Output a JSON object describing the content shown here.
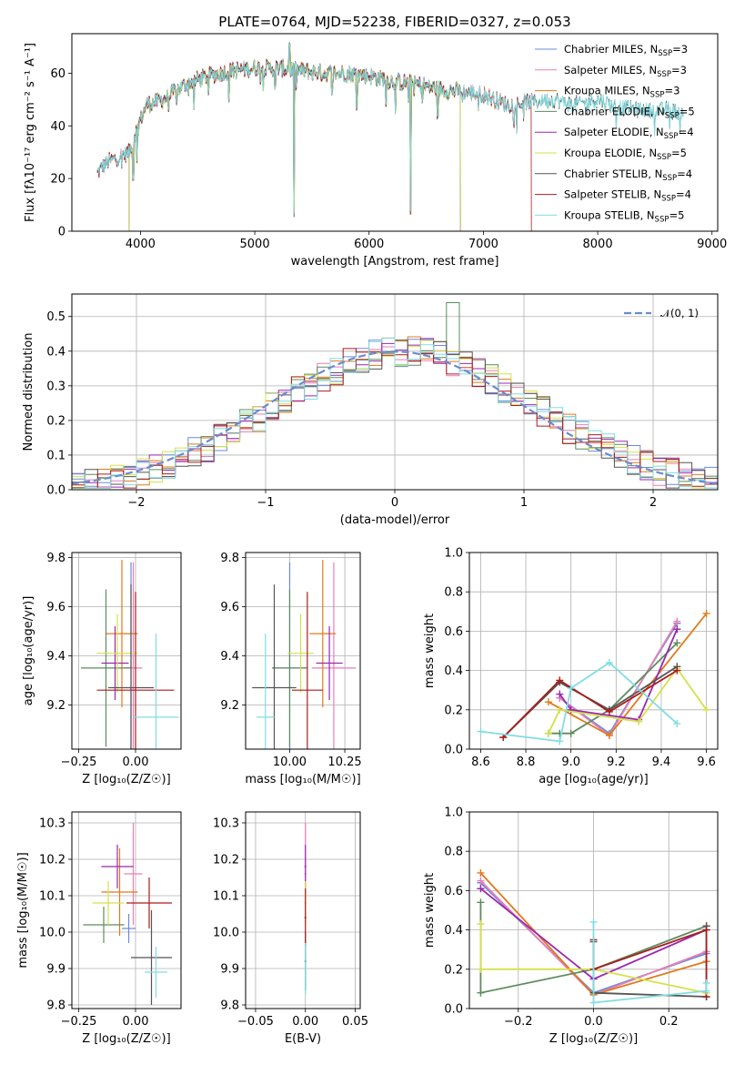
{
  "page": {
    "title": "PLATE=0764, MJD=52238, FIBERID=0327, z=0.053"
  },
  "colors": {
    "chabrier_miles": "#6b8bd8",
    "salpeter_miles": "#e77fb6",
    "kroupa_miles": "#e07a1c",
    "chabrier_elodie": "#5c8c5c",
    "salpeter_elodie": "#9b27b0",
    "kroupa_elodie": "#d5e04a",
    "chabrier_stelib": "#555555",
    "salpeter_stelib": "#aa1c1c",
    "kroupa_stelib": "#80dde2",
    "gaussian": "#6a8bcf",
    "grid": "#b0b0b0"
  },
  "chart_data": [
    {
      "id": "spectrum",
      "type": "line",
      "xlabel": "wavelength [Angstrom, rest frame]",
      "ylabel": "Flux [fλ10⁻¹⁷ erg cm⁻² s⁻¹ A⁻¹]",
      "xlim": [
        3400,
        9050
      ],
      "ylim": [
        0,
        75
      ],
      "xticks": [
        4000,
        5000,
        6000,
        7000,
        8000,
        9000
      ],
      "yticks": [
        0,
        20,
        40,
        60
      ],
      "grid": false,
      "legend_position": "top-right",
      "series": [
        {
          "name": "Chabrier MILES, N_SSP=3",
          "color_key": "chabrier_miles",
          "range": [
            3620,
            7420
          ]
        },
        {
          "name": "Salpeter MILES, N_SSP=3",
          "color_key": "salpeter_miles",
          "range": [
            3620,
            7420
          ]
        },
        {
          "name": "Kroupa MILES, N_SSP=3",
          "color_key": "kroupa_miles",
          "range": [
            3620,
            7420
          ]
        },
        {
          "name": "Chabrier ELODIE, N_SSP=5",
          "color_key": "chabrier_elodie",
          "range": [
            3900,
            6800
          ]
        },
        {
          "name": "Salpeter ELODIE, N_SSP=4",
          "color_key": "salpeter_elodie",
          "range": [
            3900,
            6800
          ]
        },
        {
          "name": "Kroupa ELODIE, N_SSP=5",
          "color_key": "kroupa_elodie",
          "range": [
            3900,
            6800
          ]
        },
        {
          "name": "Chabrier STELIB, N_SSP=4",
          "color_key": "chabrier_stelib",
          "range": [
            3620,
            8750
          ]
        },
        {
          "name": "Salpeter STELIB, N_SSP=4",
          "color_key": "salpeter_stelib",
          "range": [
            3620,
            7420
          ]
        },
        {
          "name": "Kroupa STELIB, N_SSP=5",
          "color_key": "kroupa_stelib",
          "range": [
            3620,
            8750
          ]
        }
      ],
      "continuum": [
        [
          3620,
          22
        ],
        [
          3700,
          26
        ],
        [
          3800,
          28
        ],
        [
          3900,
          30
        ],
        [
          3960,
          38
        ],
        [
          4050,
          48
        ],
        [
          4200,
          50
        ],
        [
          4400,
          56
        ],
        [
          4600,
          59
        ],
        [
          4800,
          61
        ],
        [
          5000,
          62
        ],
        [
          5200,
          62
        ],
        [
          5400,
          61
        ],
        [
          5600,
          60
        ],
        [
          5800,
          60
        ],
        [
          6000,
          59
        ],
        [
          6200,
          57
        ],
        [
          6400,
          56
        ],
        [
          6600,
          54
        ],
        [
          6800,
          53
        ],
        [
          7000,
          52
        ],
        [
          7200,
          48
        ],
        [
          7400,
          49
        ],
        [
          7600,
          50
        ],
        [
          7800,
          48
        ],
        [
          8000,
          50
        ],
        [
          8200,
          47
        ],
        [
          8400,
          46
        ],
        [
          8600,
          46
        ],
        [
          8750,
          45
        ]
      ]
    },
    {
      "id": "residuals",
      "type": "histogram",
      "xlabel": "(data-model)/error",
      "ylabel": "Normed distribution",
      "xlim": [
        -2.5,
        2.5
      ],
      "ylim": [
        0,
        0.565
      ],
      "xticks": [
        -2,
        -1,
        0,
        1,
        2
      ],
      "yticks": [
        0.0,
        0.1,
        0.2,
        0.3,
        0.4,
        0.5
      ],
      "grid": true,
      "legend_position": "top-right",
      "gaussian_label": "𝒩(0, 1)",
      "bin_width": 0.1
    },
    {
      "id": "age_vs_Z",
      "type": "scatter",
      "xlabel": "Z [log₁₀(Z/Z☉)]",
      "ylabel": "age  [log₁₀(age/yr)]",
      "xlim": [
        -0.28,
        0.2
      ],
      "ylim": [
        9.02,
        9.82
      ],
      "xticks": [
        -0.25,
        0.0,
        0.25
      ],
      "yticks": [
        9.2,
        9.4,
        9.6,
        9.8
      ],
      "grid": true,
      "points": [
        {
          "key": "chabrier_miles",
          "x": -0.02,
          "xerr": 0.03,
          "y": 9.35,
          "yerr": 0.43
        },
        {
          "key": "salpeter_miles",
          "x": -0.01,
          "xerr": 0.04,
          "y": 9.35,
          "yerr": 0.43
        },
        {
          "key": "kroupa_miles",
          "x": -0.06,
          "xerr": 0.07,
          "y": 9.49,
          "yerr": 0.3
        },
        {
          "key": "chabrier_elodie",
          "x": -0.13,
          "xerr": 0.11,
          "y": 9.35,
          "yerr": 0.32
        },
        {
          "key": "salpeter_elodie",
          "x": -0.09,
          "xerr": 0.06,
          "y": 9.37,
          "yerr": 0.15
        },
        {
          "key": "kroupa_elodie",
          "x": -0.08,
          "xerr": 0.09,
          "y": 9.41,
          "yerr": 0.16
        },
        {
          "key": "chabrier_stelib",
          "x": -0.02,
          "xerr": 0.1,
          "y": 9.27,
          "yerr": 0.42
        },
        {
          "key": "salpeter_stelib",
          "x": 0.0,
          "xerr": 0.17,
          "y": 9.26,
          "yerr": 0.4
        },
        {
          "key": "kroupa_stelib",
          "x": 0.09,
          "xerr": 0.1,
          "y": 9.15,
          "yerr": 0.34
        }
      ]
    },
    {
      "id": "age_vs_mass",
      "type": "scatter",
      "xlabel": "mass [log₁₀(M/M☉)]",
      "ylabel": "",
      "xlim": [
        9.8,
        10.32
      ],
      "ylim": [
        9.02,
        9.82
      ],
      "xticks": [
        10.0,
        10.25
      ],
      "yticks": [
        9.2,
        9.4,
        9.6,
        9.8
      ],
      "grid": true,
      "points": [
        {
          "key": "chabrier_miles",
          "x": 10.0,
          "xerr": 0.08,
          "y": 9.35,
          "yerr": 0.43
        },
        {
          "key": "salpeter_miles",
          "x": 10.2,
          "xerr": 0.1,
          "y": 9.35,
          "yerr": 0.43
        },
        {
          "key": "kroupa_miles",
          "x": 10.15,
          "xerr": 0.06,
          "y": 9.49,
          "yerr": 0.3
        },
        {
          "key": "chabrier_elodie",
          "x": 10.0,
          "xerr": 0.08,
          "y": 9.35,
          "yerr": 0.32
        },
        {
          "key": "salpeter_elodie",
          "x": 10.18,
          "xerr": 0.06,
          "y": 9.37,
          "yerr": 0.15
        },
        {
          "key": "kroupa_elodie",
          "x": 10.05,
          "xerr": 0.06,
          "y": 9.41,
          "yerr": 0.16
        },
        {
          "key": "chabrier_stelib",
          "x": 9.93,
          "xerr": 0.1,
          "y": 9.27,
          "yerr": 0.42
        },
        {
          "key": "salpeter_stelib",
          "x": 10.08,
          "xerr": 0.07,
          "y": 9.26,
          "yerr": 0.4
        },
        {
          "key": "kroupa_stelib",
          "x": 9.89,
          "xerr": 0.04,
          "y": 9.15,
          "yerr": 0.34
        }
      ]
    },
    {
      "id": "weight_vs_age",
      "type": "line",
      "xlabel": "age  [log₁₀(age/yr)]",
      "ylabel": "mass weight",
      "xlim": [
        8.55,
        9.65
      ],
      "ylim": [
        0,
        1
      ],
      "xticks": [
        8.6,
        8.8,
        9.0,
        9.2,
        9.4,
        9.6
      ],
      "yticks": [
        0.0,
        0.2,
        0.4,
        0.6,
        0.8,
        1.0
      ],
      "grid": true,
      "series": [
        {
          "key": "chabrier_miles",
          "x": [
            8.95,
            9.17,
            9.47
          ],
          "y": [
            0.26,
            0.08,
            0.64
          ]
        },
        {
          "key": "salpeter_miles",
          "x": [
            8.95,
            9.17,
            9.47
          ],
          "y": [
            0.26,
            0.07,
            0.65
          ]
        },
        {
          "key": "kroupa_miles",
          "x": [
            8.9,
            9.17,
            9.6
          ],
          "y": [
            0.24,
            0.07,
            0.69
          ]
        },
        {
          "key": "chabrier_elodie",
          "x": [
            8.9,
            8.95,
            9.0,
            9.17,
            9.47
          ],
          "y": [
            0.08,
            0.08,
            0.08,
            0.2,
            0.54
          ]
        },
        {
          "key": "salpeter_elodie",
          "x": [
            8.95,
            9.0,
            9.3,
            9.47
          ],
          "y": [
            0.28,
            0.2,
            0.15,
            0.61
          ]
        },
        {
          "key": "kroupa_elodie",
          "x": [
            8.9,
            8.95,
            9.3,
            9.47,
            9.6
          ],
          "y": [
            0.08,
            0.2,
            0.14,
            0.41,
            0.2
          ]
        },
        {
          "key": "chabrier_stelib",
          "x": [
            8.7,
            8.95,
            9.17,
            9.47
          ],
          "y": [
            0.06,
            0.34,
            0.2,
            0.42
          ]
        },
        {
          "key": "salpeter_stelib",
          "x": [
            8.7,
            8.95,
            9.17,
            9.47
          ],
          "y": [
            0.06,
            0.35,
            0.19,
            0.4
          ]
        },
        {
          "key": "kroupa_stelib",
          "x": [
            8.6,
            8.95,
            9.0,
            9.17,
            9.47
          ],
          "y": [
            0.09,
            0.04,
            0.31,
            0.44,
            0.13
          ]
        }
      ]
    },
    {
      "id": "mass_vs_Z",
      "type": "scatter",
      "xlabel": "Z [log₁₀(Z/Z☉)]",
      "ylabel": "mass [log₁₀(M/M☉)]",
      "xlim": [
        -0.28,
        0.2
      ],
      "ylim": [
        9.79,
        10.33
      ],
      "xticks": [
        -0.25,
        0.0,
        0.25
      ],
      "yticks": [
        9.8,
        9.9,
        10.0,
        10.1,
        10.2,
        10.3
      ],
      "grid": true,
      "points": [
        {
          "key": "chabrier_miles",
          "x": -0.03,
          "xerr": 0.03,
          "y": 10.01,
          "yerr": 0.04
        },
        {
          "key": "salpeter_miles",
          "x": -0.01,
          "xerr": 0.04,
          "y": 10.16,
          "yerr": 0.14
        },
        {
          "key": "kroupa_miles",
          "x": -0.07,
          "xerr": 0.08,
          "y": 10.11,
          "yerr": 0.12
        },
        {
          "key": "chabrier_elodie",
          "x": -0.14,
          "xerr": 0.09,
          "y": 10.02,
          "yerr": 0.05
        },
        {
          "key": "salpeter_elodie",
          "x": -0.08,
          "xerr": 0.07,
          "y": 10.18,
          "yerr": 0.06
        },
        {
          "key": "kroupa_elodie",
          "x": -0.12,
          "xerr": 0.07,
          "y": 10.08,
          "yerr": 0.06
        },
        {
          "key": "chabrier_stelib",
          "x": 0.07,
          "xerr": 0.09,
          "y": 9.93,
          "yerr": 0.13
        },
        {
          "key": "salpeter_stelib",
          "x": 0.06,
          "xerr": 0.1,
          "y": 10.08,
          "yerr": 0.07
        },
        {
          "key": "kroupa_stelib",
          "x": 0.09,
          "xerr": 0.05,
          "y": 9.89,
          "yerr": 0.07
        }
      ]
    },
    {
      "id": "mass_vs_ebv",
      "type": "scatter",
      "xlabel": "E(B-V)",
      "ylabel": "",
      "xlim": [
        -0.06,
        0.055
      ],
      "ylim": [
        9.79,
        10.33
      ],
      "xticks": [
        -0.05,
        0.0,
        0.05
      ],
      "yticks": [
        9.8,
        9.9,
        10.0,
        10.1,
        10.2,
        10.3
      ],
      "grid": true,
      "points": [
        {
          "key": "chabrier_stelib",
          "x": 0,
          "xerr": 0.001,
          "y": 9.92,
          "yerr": 0.08
        },
        {
          "key": "salpeter_miles",
          "x": 0,
          "xerr": 0.001,
          "y": 10.16,
          "yerr": 0.14
        },
        {
          "key": "salpeter_elodie",
          "x": 0,
          "xerr": 0.001,
          "y": 10.18,
          "yerr": 0.06
        },
        {
          "key": "kroupa_elodie",
          "x": 0,
          "xerr": 0.001,
          "y": 10.08,
          "yerr": 0.06
        },
        {
          "key": "salpeter_stelib",
          "x": 0,
          "xerr": 0.001,
          "y": 10.04,
          "yerr": 0.08
        },
        {
          "key": "kroupa_stelib",
          "x": 0,
          "xerr": 0.001,
          "y": 9.9,
          "yerr": 0.07
        }
      ]
    },
    {
      "id": "weight_vs_Z",
      "type": "line",
      "xlabel": "Z [log₁₀(Z/Z☉)]",
      "ylabel": "mass weight",
      "xlim": [
        -0.33,
        0.33
      ],
      "ylim": [
        0,
        1
      ],
      "xticks": [
        -0.2,
        0.0,
        0.2
      ],
      "yticks": [
        0.0,
        0.2,
        0.4,
        0.6,
        0.8,
        1.0
      ],
      "grid": true,
      "series": [
        {
          "key": "chabrier_miles",
          "x": [
            -0.3,
            0.0,
            0.3
          ],
          "y": [
            0.64,
            0.08,
            0.28
          ]
        },
        {
          "key": "salpeter_miles",
          "x": [
            -0.3,
            0.0,
            0.3
          ],
          "y": [
            0.65,
            0.07,
            0.29
          ]
        },
        {
          "key": "kroupa_miles",
          "x": [
            -0.3,
            0.0,
            0.3
          ],
          "y": [
            0.69,
            0.07,
            0.24
          ]
        },
        {
          "key": "chabrier_elodie",
          "x": [
            -0.3,
            -0.3,
            0.0,
            0.3
          ],
          "y": [
            0.54,
            0.08,
            0.2,
            0.42
          ]
        },
        {
          "key": "salpeter_elodie",
          "x": [
            -0.3,
            0.0,
            0.3
          ],
          "y": [
            0.61,
            0.15,
            0.4
          ]
        },
        {
          "key": "kroupa_elodie",
          "x": [
            -0.3,
            -0.3,
            0.0,
            0.3
          ],
          "y": [
            0.43,
            0.2,
            0.2,
            0.08
          ]
        },
        {
          "key": "chabrier_stelib",
          "x": [
            0.0,
            0.0,
            0.3,
            0.3
          ],
          "y": [
            0.34,
            0.08,
            0.06,
            0.42
          ]
        },
        {
          "key": "salpeter_stelib",
          "x": [
            0.0,
            0.0,
            0.3,
            0.3
          ],
          "y": [
            0.35,
            0.2,
            0.4,
            0.06
          ]
        },
        {
          "key": "kroupa_stelib",
          "x": [
            0.0,
            0.0,
            0.3,
            0.3
          ],
          "y": [
            0.44,
            0.03,
            0.09,
            0.13
          ]
        }
      ]
    }
  ]
}
